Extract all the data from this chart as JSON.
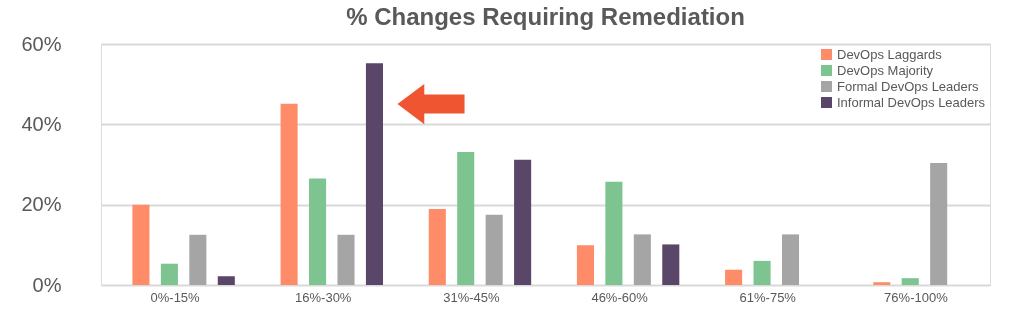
{
  "chart_data": {
    "type": "bar",
    "title": "% Changes Requiring Remediation",
    "categories": [
      "0%-15%",
      "16%-30%",
      "31%-45%",
      "46%-60%",
      "61%-75%",
      "76%-100%"
    ],
    "series": [
      {
        "name": "DevOps Laggards",
        "color": "#ff8c69",
        "values": [
          20,
          45.1,
          18.9,
          9.9,
          3.8,
          0.7
        ]
      },
      {
        "name": "DevOps Majority",
        "color": "#7dc491",
        "values": [
          5.3,
          26.5,
          33.1,
          25.7,
          6,
          1.7
        ]
      },
      {
        "name": "Formal DevOps Leaders",
        "color": "#a5a5a5",
        "values": [
          12.5,
          12.5,
          17.5,
          12.6,
          12.6,
          30.4
        ]
      },
      {
        "name": "Informal DevOps Leaders",
        "color": "#5a4668",
        "values": [
          2.2,
          55.2,
          31.2,
          10.1,
          null,
          null
        ]
      }
    ],
    "ylim": [
      0,
      60
    ],
    "yticks": [
      {
        "value": 0,
        "label": "0%"
      },
      {
        "value": 20,
        "label": "20%"
      },
      {
        "value": 40,
        "label": "40%"
      },
      {
        "value": 60,
        "label": "60%"
      }
    ],
    "grid": "y",
    "legend": "top right"
  }
}
